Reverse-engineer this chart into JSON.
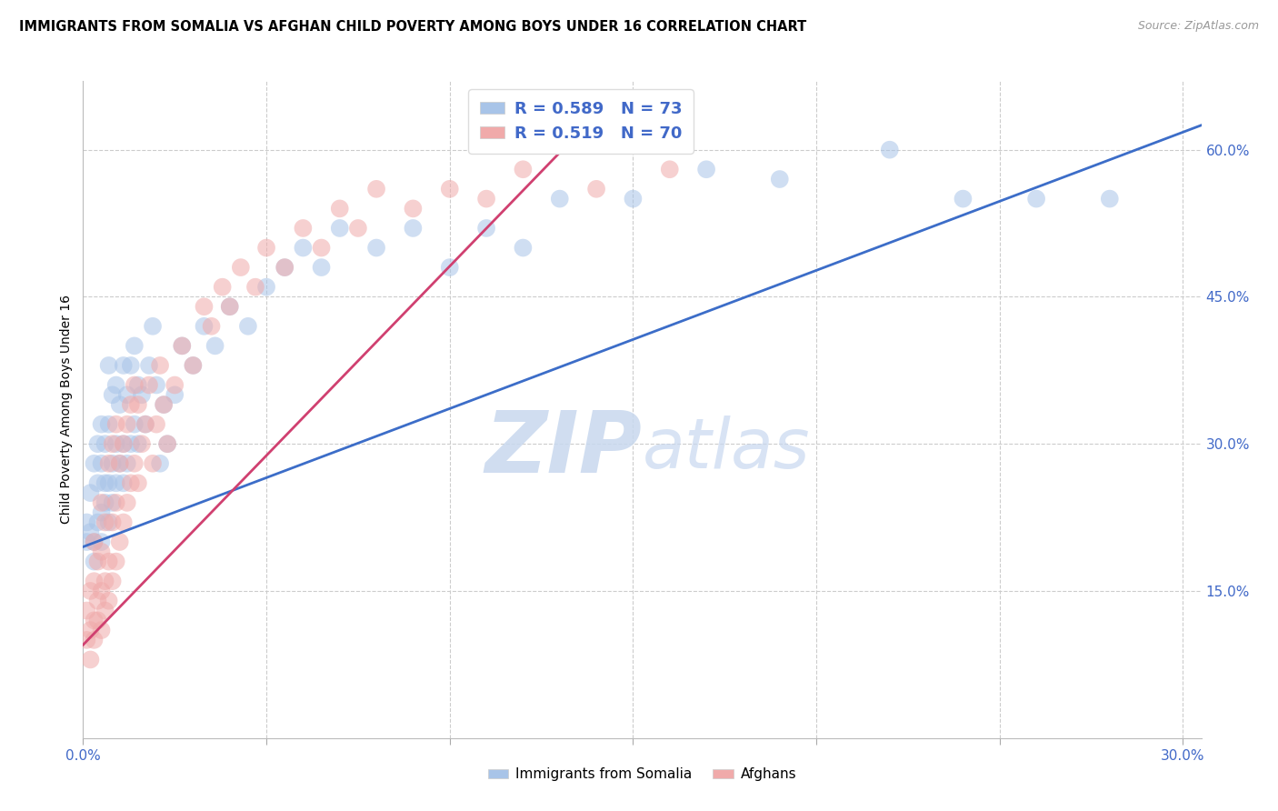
{
  "title": "IMMIGRANTS FROM SOMALIA VS AFGHAN CHILD POVERTY AMONG BOYS UNDER 16 CORRELATION CHART",
  "source": "Source: ZipAtlas.com",
  "ylabel": "Child Poverty Among Boys Under 16",
  "xlim": [
    0.0,
    0.305
  ],
  "ylim": [
    0.0,
    0.67
  ],
  "somalia_color": "#a8c4e8",
  "afghan_color": "#f0aaaa",
  "somalia_line_color": "#3c6dc8",
  "afghan_line_color": "#d04070",
  "somalia_R": 0.589,
  "somalia_N": 73,
  "afghan_R": 0.519,
  "afghan_N": 70,
  "legend_labels": [
    "Immigrants from Somalia",
    "Afghans"
  ],
  "watermark_text": "ZIPatlas",
  "background_color": "#ffffff",
  "grid_color": "#cccccc",
  "yticks_right": [
    0.15,
    0.3,
    0.45,
    0.6
  ],
  "yticklabels_right": [
    "15.0%",
    "30.0%",
    "45.0%",
    "60.0%"
  ],
  "somalia_x": [
    0.001,
    0.001,
    0.002,
    0.002,
    0.003,
    0.003,
    0.003,
    0.004,
    0.004,
    0.004,
    0.005,
    0.005,
    0.005,
    0.005,
    0.006,
    0.006,
    0.006,
    0.007,
    0.007,
    0.007,
    0.007,
    0.008,
    0.008,
    0.008,
    0.009,
    0.009,
    0.009,
    0.01,
    0.01,
    0.011,
    0.011,
    0.011,
    0.012,
    0.012,
    0.013,
    0.013,
    0.014,
    0.014,
    0.015,
    0.015,
    0.016,
    0.017,
    0.018,
    0.019,
    0.02,
    0.021,
    0.022,
    0.023,
    0.025,
    0.027,
    0.03,
    0.033,
    0.036,
    0.04,
    0.045,
    0.05,
    0.055,
    0.06,
    0.065,
    0.07,
    0.08,
    0.09,
    0.1,
    0.11,
    0.12,
    0.13,
    0.15,
    0.17,
    0.19,
    0.22,
    0.24,
    0.26,
    0.28
  ],
  "somalia_y": [
    0.2,
    0.22,
    0.21,
    0.25,
    0.18,
    0.2,
    0.28,
    0.22,
    0.26,
    0.3,
    0.2,
    0.23,
    0.28,
    0.32,
    0.24,
    0.26,
    0.3,
    0.22,
    0.26,
    0.32,
    0.38,
    0.24,
    0.28,
    0.35,
    0.26,
    0.3,
    0.36,
    0.28,
    0.34,
    0.26,
    0.3,
    0.38,
    0.28,
    0.35,
    0.3,
    0.38,
    0.32,
    0.4,
    0.3,
    0.36,
    0.35,
    0.32,
    0.38,
    0.42,
    0.36,
    0.28,
    0.34,
    0.3,
    0.35,
    0.4,
    0.38,
    0.42,
    0.4,
    0.44,
    0.42,
    0.46,
    0.48,
    0.5,
    0.48,
    0.52,
    0.5,
    0.52,
    0.48,
    0.52,
    0.5,
    0.55,
    0.55,
    0.58,
    0.57,
    0.6,
    0.55,
    0.55,
    0.55
  ],
  "afghan_x": [
    0.001,
    0.001,
    0.002,
    0.002,
    0.002,
    0.003,
    0.003,
    0.003,
    0.003,
    0.004,
    0.004,
    0.004,
    0.005,
    0.005,
    0.005,
    0.005,
    0.006,
    0.006,
    0.006,
    0.007,
    0.007,
    0.007,
    0.008,
    0.008,
    0.008,
    0.009,
    0.009,
    0.009,
    0.01,
    0.01,
    0.011,
    0.011,
    0.012,
    0.012,
    0.013,
    0.013,
    0.014,
    0.014,
    0.015,
    0.015,
    0.016,
    0.017,
    0.018,
    0.019,
    0.02,
    0.021,
    0.022,
    0.023,
    0.025,
    0.027,
    0.03,
    0.033,
    0.035,
    0.038,
    0.04,
    0.043,
    0.047,
    0.05,
    0.055,
    0.06,
    0.065,
    0.07,
    0.075,
    0.08,
    0.09,
    0.1,
    0.11,
    0.12,
    0.14,
    0.16
  ],
  "afghan_y": [
    0.1,
    0.13,
    0.08,
    0.11,
    0.15,
    0.1,
    0.12,
    0.16,
    0.2,
    0.12,
    0.14,
    0.18,
    0.11,
    0.15,
    0.19,
    0.24,
    0.13,
    0.16,
    0.22,
    0.14,
    0.18,
    0.28,
    0.16,
    0.22,
    0.3,
    0.18,
    0.24,
    0.32,
    0.2,
    0.28,
    0.22,
    0.3,
    0.24,
    0.32,
    0.26,
    0.34,
    0.28,
    0.36,
    0.26,
    0.34,
    0.3,
    0.32,
    0.36,
    0.28,
    0.32,
    0.38,
    0.34,
    0.3,
    0.36,
    0.4,
    0.38,
    0.44,
    0.42,
    0.46,
    0.44,
    0.48,
    0.46,
    0.5,
    0.48,
    0.52,
    0.5,
    0.54,
    0.52,
    0.56,
    0.54,
    0.56,
    0.55,
    0.58,
    0.56,
    0.58
  ]
}
